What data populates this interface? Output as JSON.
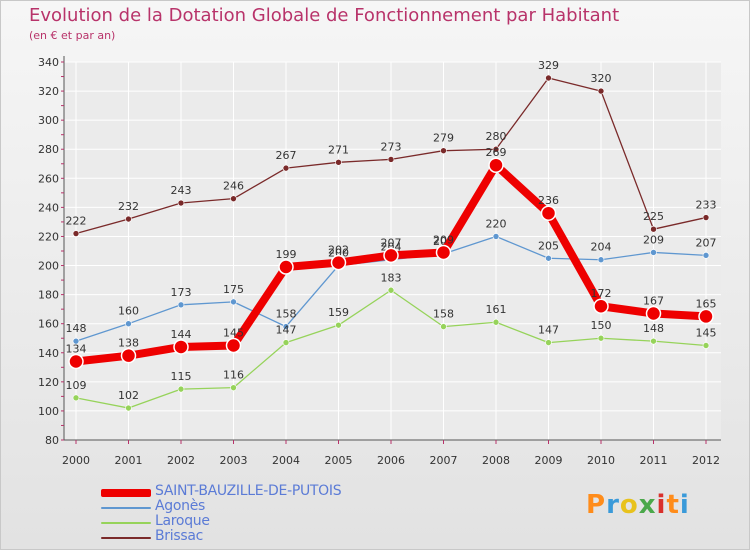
{
  "header": {
    "title": "Evolution de la Dotation Globale de Fonctionnement par Habitant",
    "subtitle": "(en € et par an)"
  },
  "logo": {
    "text": "Proxiti",
    "colors": [
      "#ff8c1a",
      "#3a9ad9",
      "#e8c21c",
      "#4aa84a",
      "#d9302c",
      "#ff8c1a",
      "#3a9ad9"
    ]
  },
  "chart_data": {
    "type": "line",
    "title": "Evolution de la Dotation Globale de Fonctionnement par Habitant",
    "subtitle": "(en € et par an)",
    "xlabel": "",
    "ylabel": "",
    "categories": [
      "2000",
      "2001",
      "2002",
      "2003",
      "2004",
      "2005",
      "2006",
      "2007",
      "2008",
      "2009",
      "2010",
      "2011",
      "2012"
    ],
    "ylim": [
      80,
      340
    ],
    "yticks": [
      "80",
      "100",
      "120",
      "140",
      "160",
      "180",
      "200",
      "220",
      "240",
      "260",
      "280",
      "300",
      "320",
      "340"
    ],
    "grid": true,
    "legend_position": "bottom-left",
    "series": [
      {
        "name": "Brissac",
        "color": "#7a2a2a",
        "values": [
          222,
          232,
          243,
          246,
          267,
          271,
          273,
          279,
          280,
          329,
          320,
          225,
          233
        ],
        "labels": [
          "222",
          "232",
          "243",
          "246",
          "267",
          "271",
          "273",
          "279",
          "280",
          "329",
          "320",
          "225",
          "233"
        ]
      },
      {
        "name": "Agonès",
        "color": "#5f97d0",
        "values": [
          148,
          160,
          173,
          175,
          158,
          200,
          204,
          208,
          220,
          205,
          204,
          209,
          207
        ],
        "labels": [
          "148",
          "160",
          "173",
          "175",
          "158",
          "200",
          "204",
          "208",
          "220",
          "205",
          "204",
          "209",
          "207"
        ]
      },
      {
        "name": "Laroque",
        "color": "#96d35a",
        "values": [
          109,
          102,
          115,
          116,
          147,
          159,
          183,
          158,
          161,
          147,
          150,
          148,
          145
        ],
        "labels": [
          "109",
          "102",
          "115",
          "116",
          "147",
          "159",
          "183",
          "158",
          "161",
          "147",
          "150",
          "148",
          "145"
        ]
      },
      {
        "name": "SAINT-BAUZILLE-DE-PUTOIS",
        "color": "#ee0000",
        "values": [
          134,
          138,
          144,
          145,
          199,
          202,
          207,
          209,
          269,
          236,
          172,
          167,
          165
        ],
        "labels": [
          "134",
          "138",
          "144",
          "145",
          "199",
          "202",
          "207",
          "209",
          "269",
          "236",
          "172",
          "167",
          "165"
        ]
      }
    ],
    "legend": [
      {
        "name": "SAINT-BAUZILLE-DE-PUTOIS",
        "color": "#ee0000"
      },
      {
        "name": "Agonès",
        "color": "#5f97d0"
      },
      {
        "name": "Laroque",
        "color": "#96d35a"
      },
      {
        "name": "Brissac",
        "color": "#7a2a2a"
      }
    ]
  }
}
